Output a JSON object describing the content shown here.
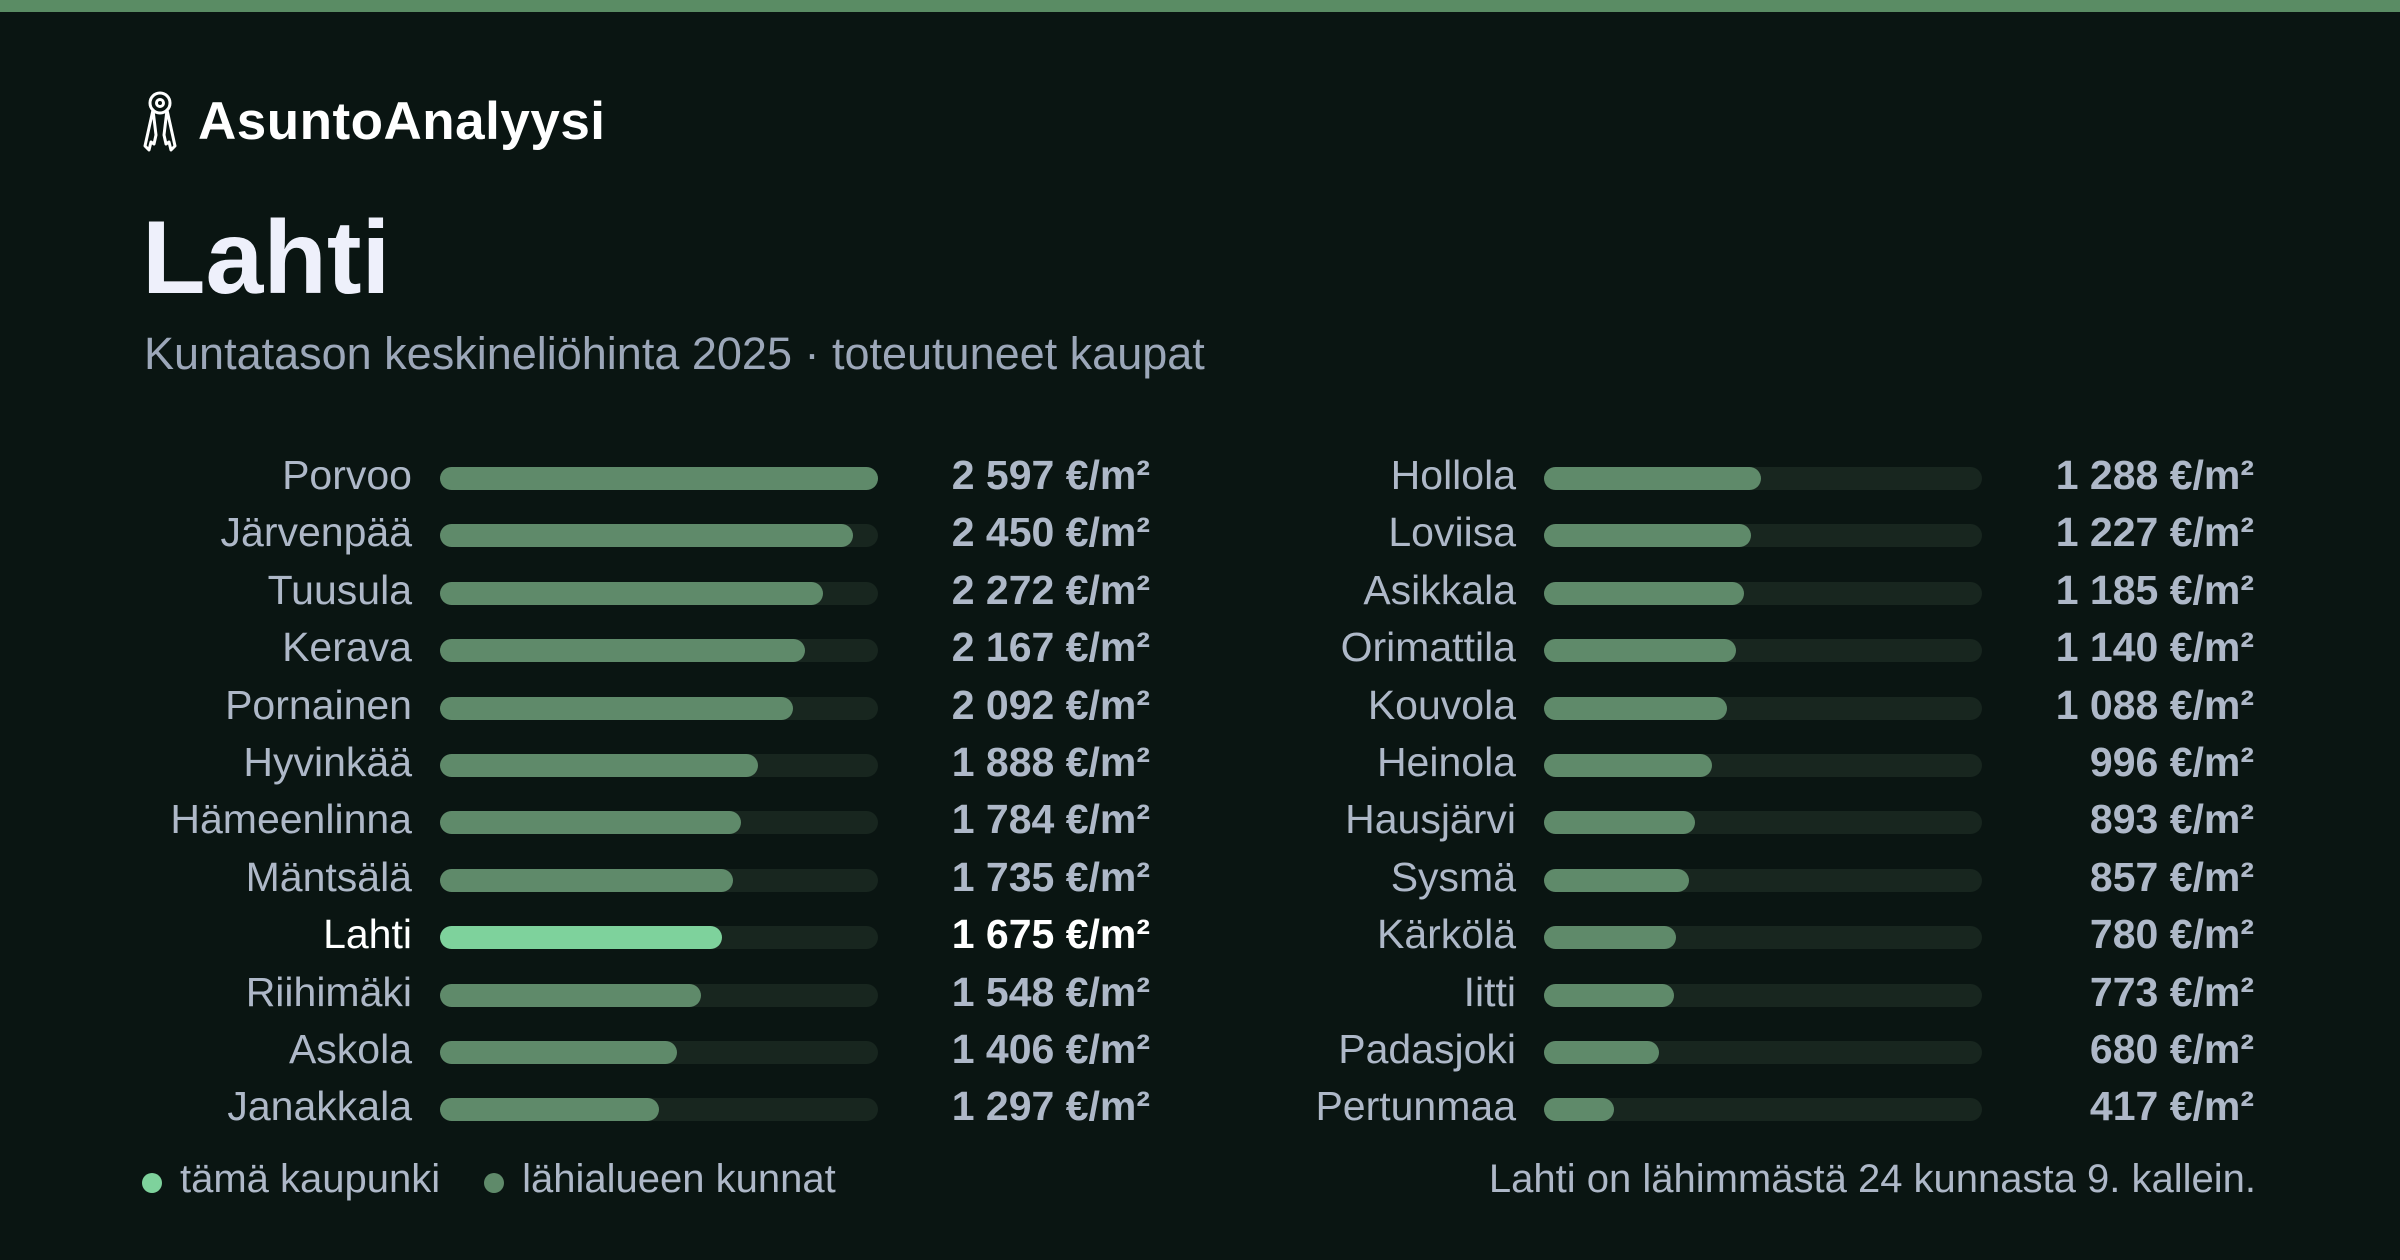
{
  "header": {
    "brand_name": "AsuntoAnalyysi",
    "brand_icon": "keys-icon",
    "title": "Lahti",
    "subtitle": "Kuntatason keskineliöhinta 2025 · toteutuneet kaupat"
  },
  "colors": {
    "background": "#0a1512",
    "accent_bar": "#5a8c64",
    "highlight": "#7ed29c",
    "neighbor": "#5f8a6a",
    "track": "#18261f"
  },
  "chart_data": {
    "type": "bar",
    "orientation": "horizontal",
    "unit": "€/m²",
    "xlim": [
      0,
      2597
    ],
    "grid": false,
    "legend_position": "bottom-left",
    "highlight": "Lahti",
    "columns": [
      [
        {
          "name": "Porvoo",
          "value": 2597,
          "label": "2 597 €/m²"
        },
        {
          "name": "Järvenpää",
          "value": 2450,
          "label": "2 450 €/m²"
        },
        {
          "name": "Tuusula",
          "value": 2272,
          "label": "2 272 €/m²"
        },
        {
          "name": "Kerava",
          "value": 2167,
          "label": "2 167 €/m²"
        },
        {
          "name": "Pornainen",
          "value": 2092,
          "label": "2 092 €/m²"
        },
        {
          "name": "Hyvinkää",
          "value": 1888,
          "label": "1 888 €/m²"
        },
        {
          "name": "Hämeenlinna",
          "value": 1784,
          "label": "1 784 €/m²"
        },
        {
          "name": "Mäntsälä",
          "value": 1735,
          "label": "1 735 €/m²"
        },
        {
          "name": "Lahti",
          "value": 1675,
          "label": "1 675 €/m²"
        },
        {
          "name": "Riihimäki",
          "value": 1548,
          "label": "1 548 €/m²"
        },
        {
          "name": "Askola",
          "value": 1406,
          "label": "1 406 €/m²"
        },
        {
          "name": "Janakkala",
          "value": 1297,
          "label": "1 297 €/m²"
        }
      ],
      [
        {
          "name": "Hollola",
          "value": 1288,
          "label": "1 288 €/m²"
        },
        {
          "name": "Loviisa",
          "value": 1227,
          "label": "1 227 €/m²"
        },
        {
          "name": "Asikkala",
          "value": 1185,
          "label": "1 185 €/m²"
        },
        {
          "name": "Orimattila",
          "value": 1140,
          "label": "1 140 €/m²"
        },
        {
          "name": "Kouvola",
          "value": 1088,
          "label": "1 088 €/m²"
        },
        {
          "name": "Heinola",
          "value": 996,
          "label": "996 €/m²"
        },
        {
          "name": "Hausjärvi",
          "value": 893,
          "label": "893 €/m²"
        },
        {
          "name": "Sysmä",
          "value": 857,
          "label": "857 €/m²"
        },
        {
          "name": "Kärkölä",
          "value": 780,
          "label": "780 €/m²"
        },
        {
          "name": "Iitti",
          "value": 773,
          "label": "773 €/m²"
        },
        {
          "name": "Padasjoki",
          "value": 680,
          "label": "680 €/m²"
        },
        {
          "name": "Pertunmaa",
          "value": 417,
          "label": "417 €/m²"
        }
      ]
    ]
  },
  "legend": {
    "this_city": "tämä kaupunki",
    "nearby": "lähialueen kunnat"
  },
  "footnote": "Lahti on lähimmästä 24 kunnasta 9. kallein."
}
